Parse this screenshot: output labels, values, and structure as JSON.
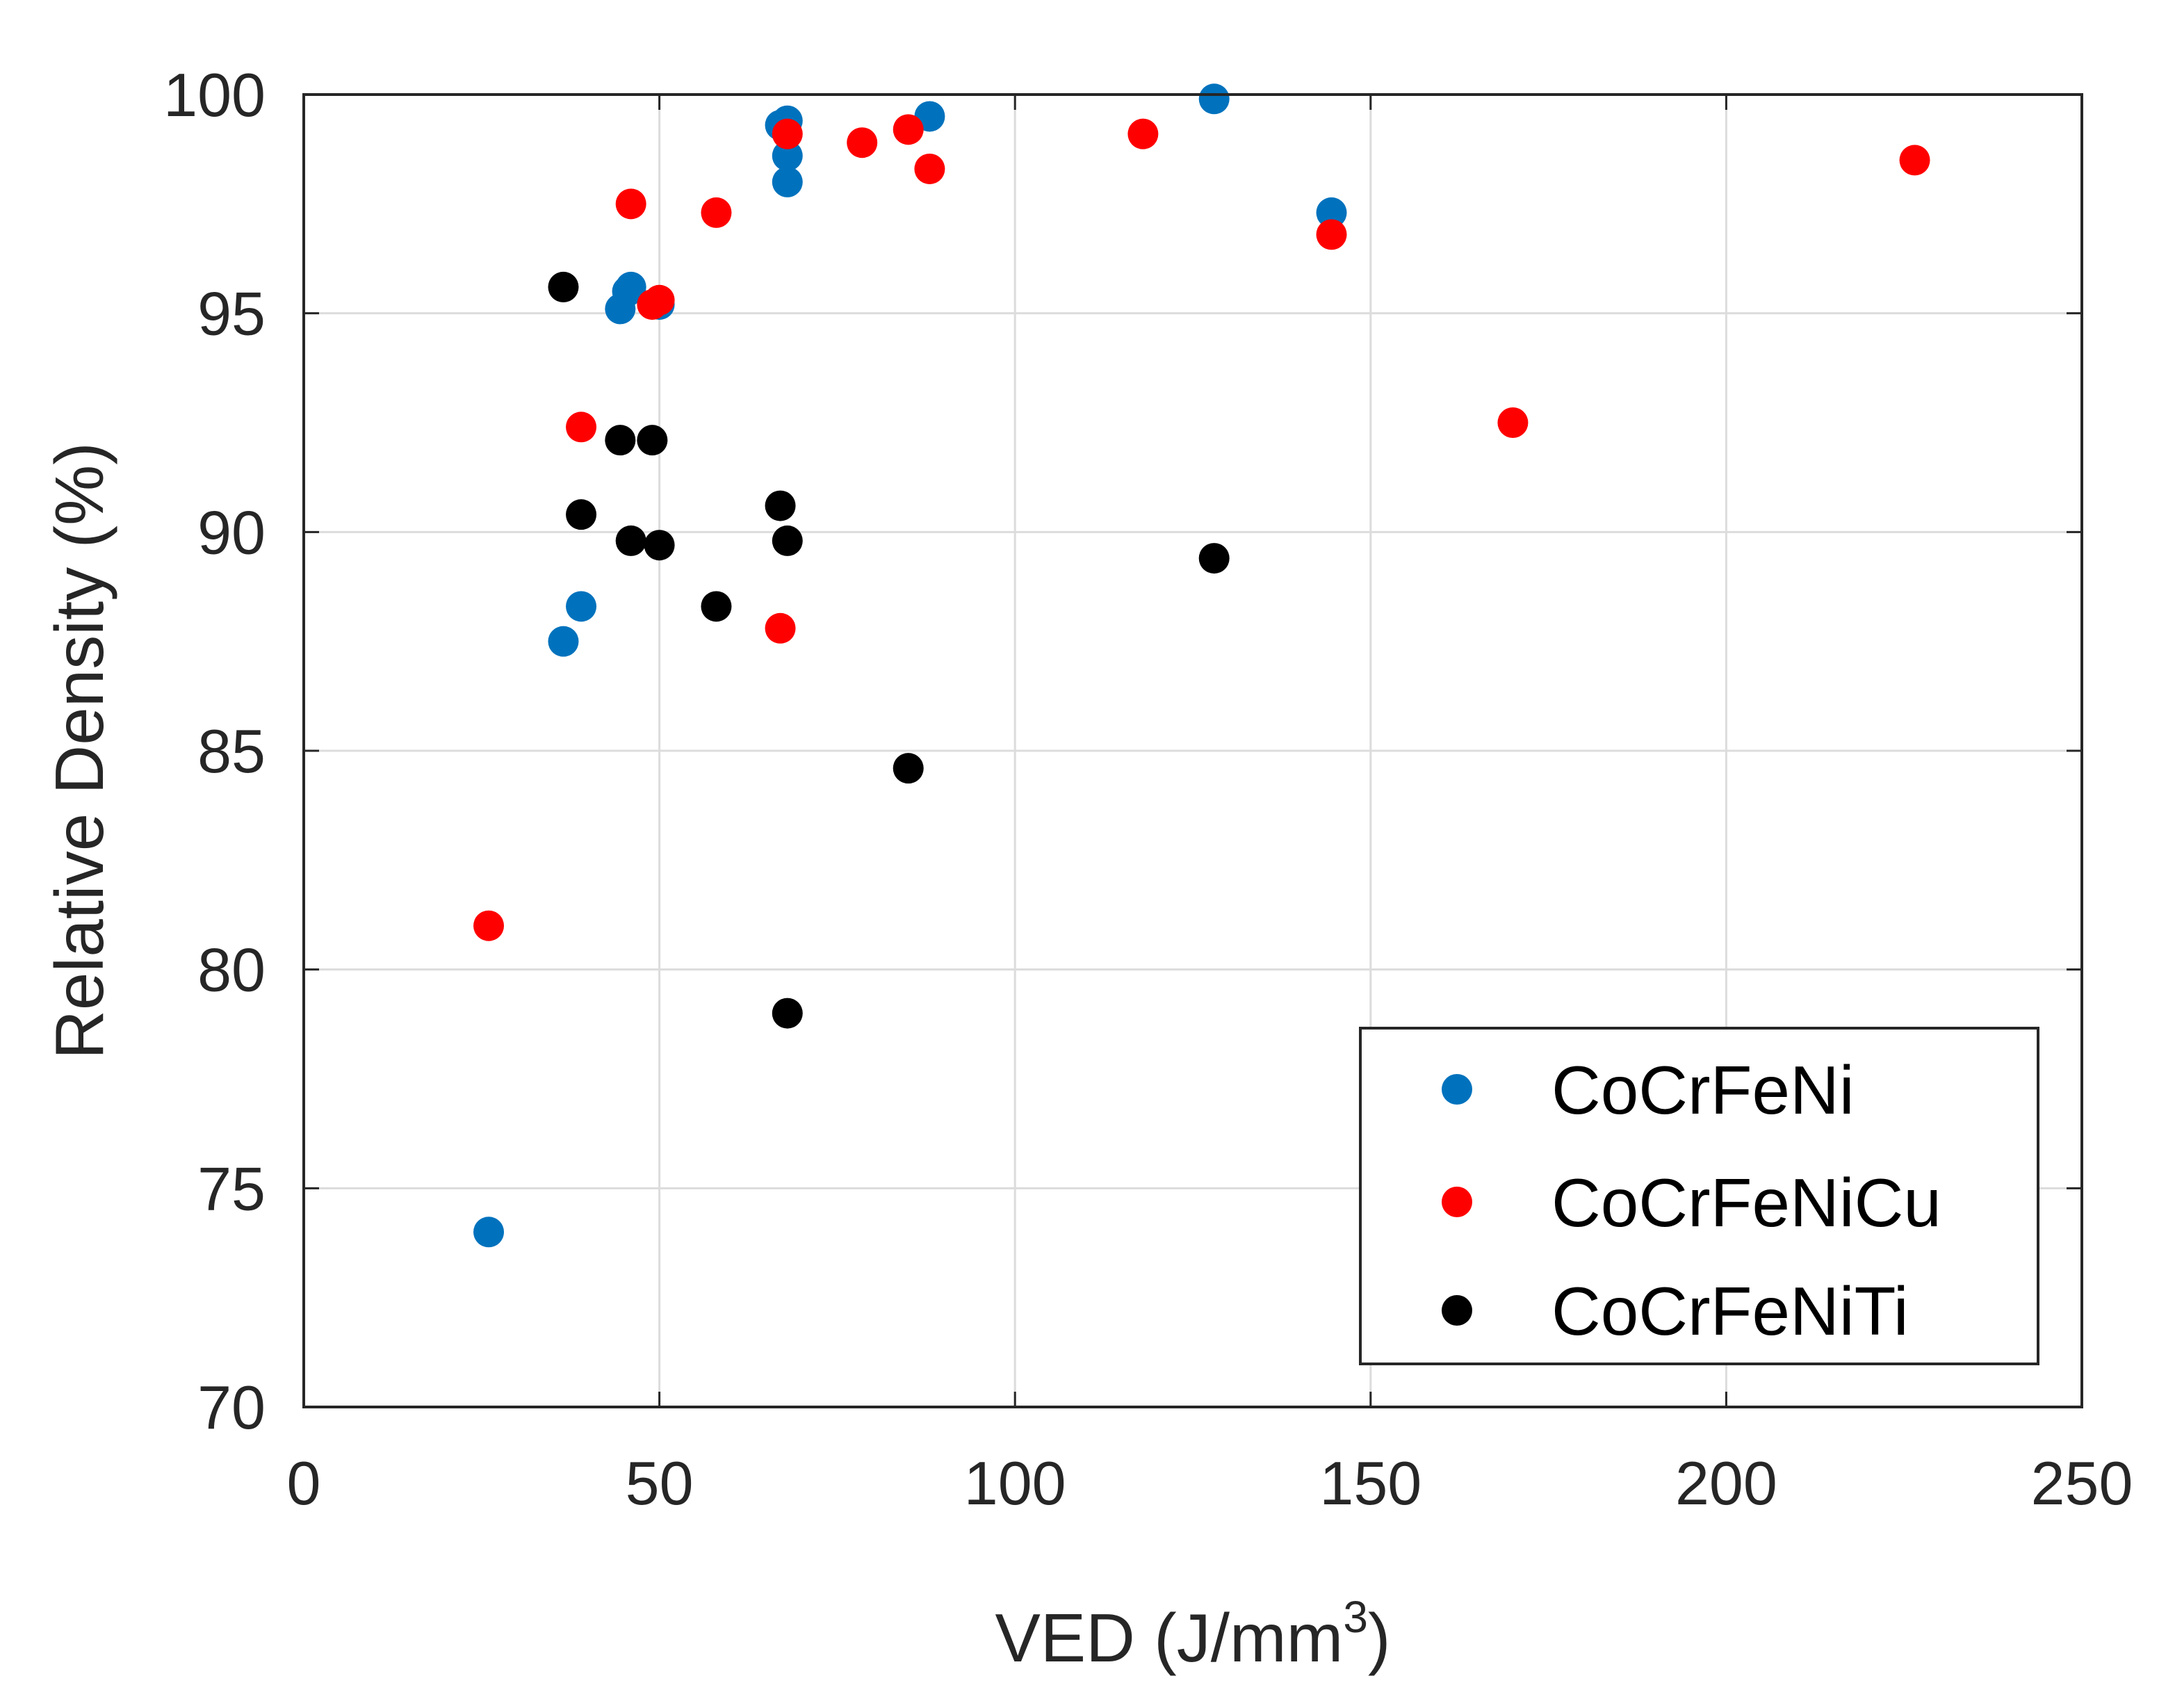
{
  "chart_data": {
    "type": "scatter",
    "title": "",
    "xlabel": "VED (J/mm",
    "xlabel_sup": "3",
    "xlabel_end": ")",
    "ylabel": "Relative Density (%)",
    "xlim": [
      0,
      250
    ],
    "ylim": [
      70,
      100
    ],
    "xticks": [
      0,
      50,
      100,
      150,
      200,
      250
    ],
    "yticks": [
      70,
      75,
      80,
      85,
      90,
      95,
      100
    ],
    "grid": true,
    "legend_position": "bottom-right",
    "series": [
      {
        "name": "CoCrFeNi",
        "color": "#0072BD",
        "points": [
          [
            26,
            74.0
          ],
          [
            36.5,
            87.5
          ],
          [
            39,
            88.3
          ],
          [
            44.5,
            95.1
          ],
          [
            45.5,
            95.5
          ],
          [
            46,
            95.6
          ],
          [
            50,
            95.2
          ],
          [
            67,
            99.3
          ],
          [
            68,
            99.4
          ],
          [
            68,
            98.6
          ],
          [
            68,
            98.0
          ],
          [
            88,
            99.5
          ],
          [
            128,
            99.9
          ],
          [
            144.5,
            97.3
          ]
        ]
      },
      {
        "name": "CoCrFeNiCu",
        "color": "#FF0000",
        "points": [
          [
            26,
            81.0
          ],
          [
            39,
            92.4
          ],
          [
            46,
            97.5
          ],
          [
            49,
            95.2
          ],
          [
            50,
            95.3
          ],
          [
            58,
            97.3
          ],
          [
            67,
            87.8
          ],
          [
            68,
            99.1
          ],
          [
            78.5,
            98.9
          ],
          [
            85,
            99.2
          ],
          [
            88,
            98.3
          ],
          [
            118,
            99.1
          ],
          [
            144.5,
            96.8
          ],
          [
            170,
            92.5
          ],
          [
            226.5,
            98.5
          ]
        ]
      },
      {
        "name": "CoCrFeNiTi",
        "color": "#000000",
        "points": [
          [
            36.5,
            95.6
          ],
          [
            39,
            90.4
          ],
          [
            44.5,
            92.1
          ],
          [
            46,
            89.8
          ],
          [
            49,
            92.1
          ],
          [
            50,
            89.7
          ],
          [
            58,
            88.3
          ],
          [
            67,
            90.6
          ],
          [
            68,
            89.8
          ],
          [
            68,
            79.0
          ],
          [
            85,
            84.6
          ],
          [
            128,
            89.4
          ]
        ]
      }
    ]
  }
}
